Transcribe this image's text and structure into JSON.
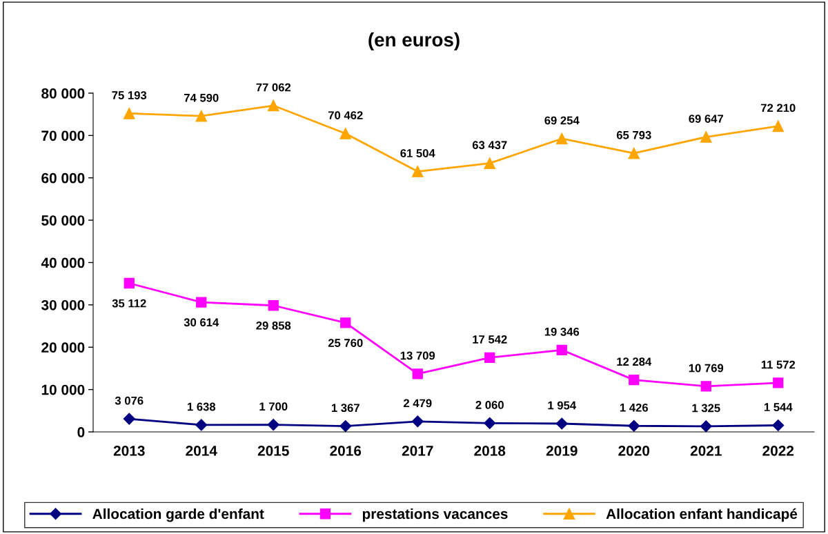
{
  "chart_data": {
    "type": "line",
    "title": "(en euros)",
    "categories": [
      "2013",
      "2014",
      "2015",
      "2016",
      "2017",
      "2018",
      "2019",
      "2020",
      "2021",
      "2022"
    ],
    "series": [
      {
        "name": "Allocation garde d'enfant",
        "color": "#000080",
        "marker": "diamond",
        "values": [
          3076,
          1638,
          1700,
          1367,
          2479,
          2060,
          1954,
          1426,
          1325,
          1544
        ],
        "value_labels": [
          "3 076",
          "1 638",
          "1 700",
          "1 367",
          "2 479",
          "2 060",
          "1 954",
          "1 426",
          "1 325",
          "1 544"
        ]
      },
      {
        "name": "prestations vacances",
        "color": "#ff00ff",
        "marker": "square",
        "values": [
          35112,
          30614,
          29858,
          25760,
          13709,
          17542,
          19346,
          12284,
          10769,
          11572
        ],
        "value_labels": [
          "35 112",
          "30 614",
          "29 858",
          "25 760",
          "13 709",
          "17 542",
          "19 346",
          "12 284",
          "10 769",
          "11 572"
        ]
      },
      {
        "name": "Allocation enfant handicapé",
        "color": "#ffa500",
        "marker": "triangle",
        "values": [
          75193,
          74590,
          77062,
          70462,
          61504,
          63437,
          69254,
          65793,
          69647,
          72210
        ],
        "value_labels": [
          "75 193",
          "74 590",
          "77 062",
          "70 462",
          "61 504",
          "63 437",
          "69 254",
          "65 793",
          "69 647",
          "72 210"
        ]
      }
    ],
    "ylim": [
      0,
      80000
    ],
    "yticks": [
      {
        "value": 0,
        "label": "0"
      },
      {
        "value": 10000,
        "label": "10 000"
      },
      {
        "value": 20000,
        "label": "20 000"
      },
      {
        "value": 30000,
        "label": "30 000"
      },
      {
        "value": 40000,
        "label": "40 000"
      },
      {
        "value": 50000,
        "label": "50 000"
      },
      {
        "value": 60000,
        "label": "60 000"
      },
      {
        "value": 70000,
        "label": "70 000"
      },
      {
        "value": 80000,
        "label": "80 000"
      }
    ],
    "grid": false,
    "legend": "bottom",
    "line_style": "solid"
  }
}
